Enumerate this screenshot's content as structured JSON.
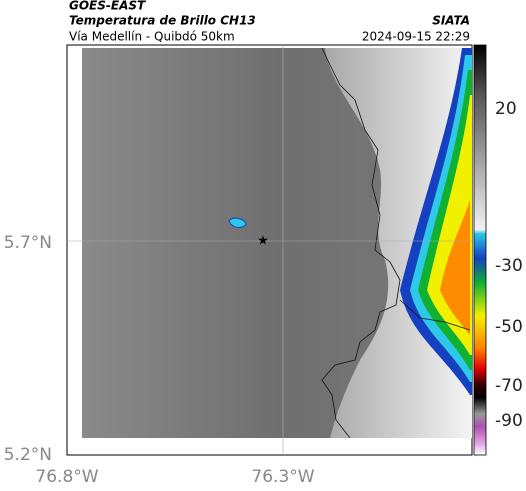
{
  "header": {
    "satellite": "GOES-EAST",
    "product": "Temperatura de Brillo CH13",
    "route": "Vía Medellín - Quibdó 50km",
    "source": "SIATA",
    "datetime": "2024-09-15 22:29"
  },
  "map": {
    "lat_ticks": [
      "5.7°N",
      "5.2°N"
    ],
    "lon_ticks": [
      "76.8°W",
      "76.3°W"
    ]
  },
  "colorbar": {
    "ticks": [
      "20",
      "-30",
      "-50",
      "-70",
      "-90"
    ]
  }
}
